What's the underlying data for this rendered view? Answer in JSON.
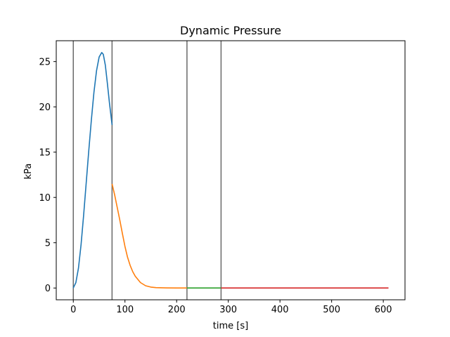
{
  "chart_data": {
    "type": "line",
    "title": "Dynamic Pressure",
    "xlabel": "time [s]",
    "ylabel": "kPa",
    "xlim": [
      -33,
      642
    ],
    "ylim": [
      -1.3,
      27.3
    ],
    "x_ticks": [
      0,
      100,
      200,
      300,
      400,
      500,
      600
    ],
    "y_ticks": [
      0,
      5,
      10,
      15,
      20,
      25
    ],
    "grid": false,
    "phase_boundaries": [
      0,
      75,
      220,
      286
    ],
    "boundary_color": "#696969",
    "series": [
      {
        "color": "#1f77b4",
        "x": [
          0,
          5,
          10,
          15,
          20,
          25,
          30,
          35,
          40,
          45,
          50,
          55,
          58,
          62,
          66,
          70,
          75
        ],
        "y": [
          0,
          0.6,
          2.2,
          4.8,
          8.0,
          11.6,
          15.2,
          18.6,
          21.6,
          24.0,
          25.5,
          26.0,
          25.8,
          24.6,
          22.6,
          20.4,
          18.0
        ]
      },
      {
        "color": "#ff7f0e",
        "x": [
          75,
          80,
          85,
          90,
          95,
          100,
          105,
          110,
          115,
          120,
          130,
          140,
          150,
          160,
          180,
          200,
          220
        ],
        "y": [
          11.5,
          10.3,
          8.9,
          7.5,
          6.0,
          4.6,
          3.4,
          2.5,
          1.8,
          1.3,
          0.6,
          0.25,
          0.1,
          0.04,
          0.01,
          0.0,
          0.0
        ]
      },
      {
        "color": "#2ca02c",
        "x": [
          220,
          286
        ],
        "y": [
          0.0,
          0.0
        ]
      },
      {
        "color": "#d62728",
        "x": [
          286,
          610
        ],
        "y": [
          0.0,
          0.0
        ]
      }
    ]
  }
}
